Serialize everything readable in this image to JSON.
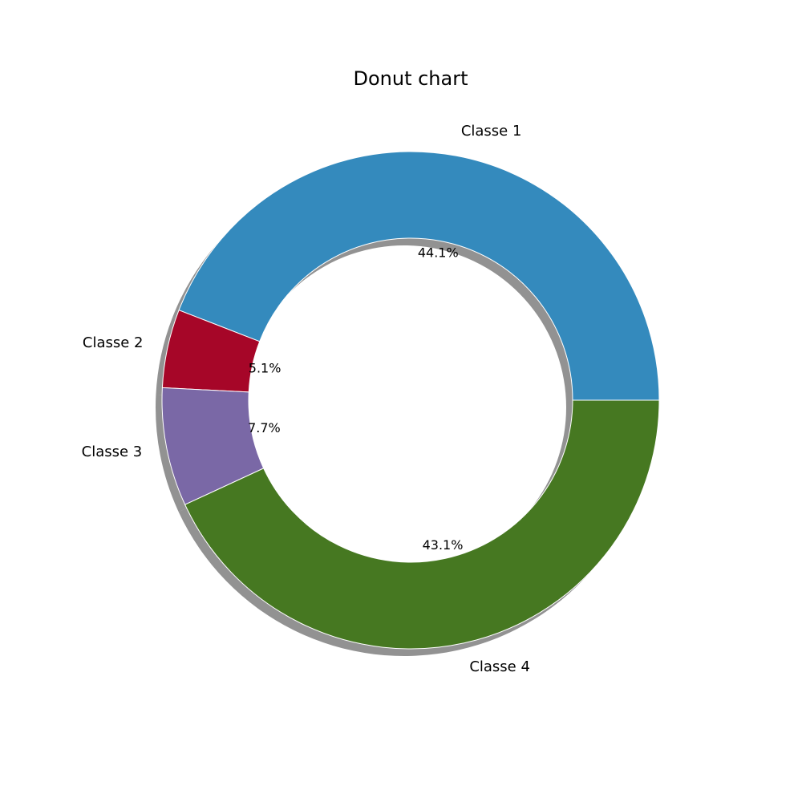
{
  "chart_data": {
    "type": "pie",
    "title": "Donut chart",
    "categories": [
      "Classe 1",
      "Classe 2",
      "Classe 3",
      "Classe 4"
    ],
    "values": [
      44.1,
      5.1,
      7.7,
      43.1
    ],
    "value_labels": [
      "44.1%",
      "5.1%",
      "7.7%",
      "43.1%"
    ],
    "colors": [
      "#348abd",
      "#a60628",
      "#7a68a6",
      "#467821"
    ],
    "donut": true,
    "shadow": true,
    "start_angle_deg": 0,
    "direction": "counterclockwise",
    "legend": "none"
  }
}
